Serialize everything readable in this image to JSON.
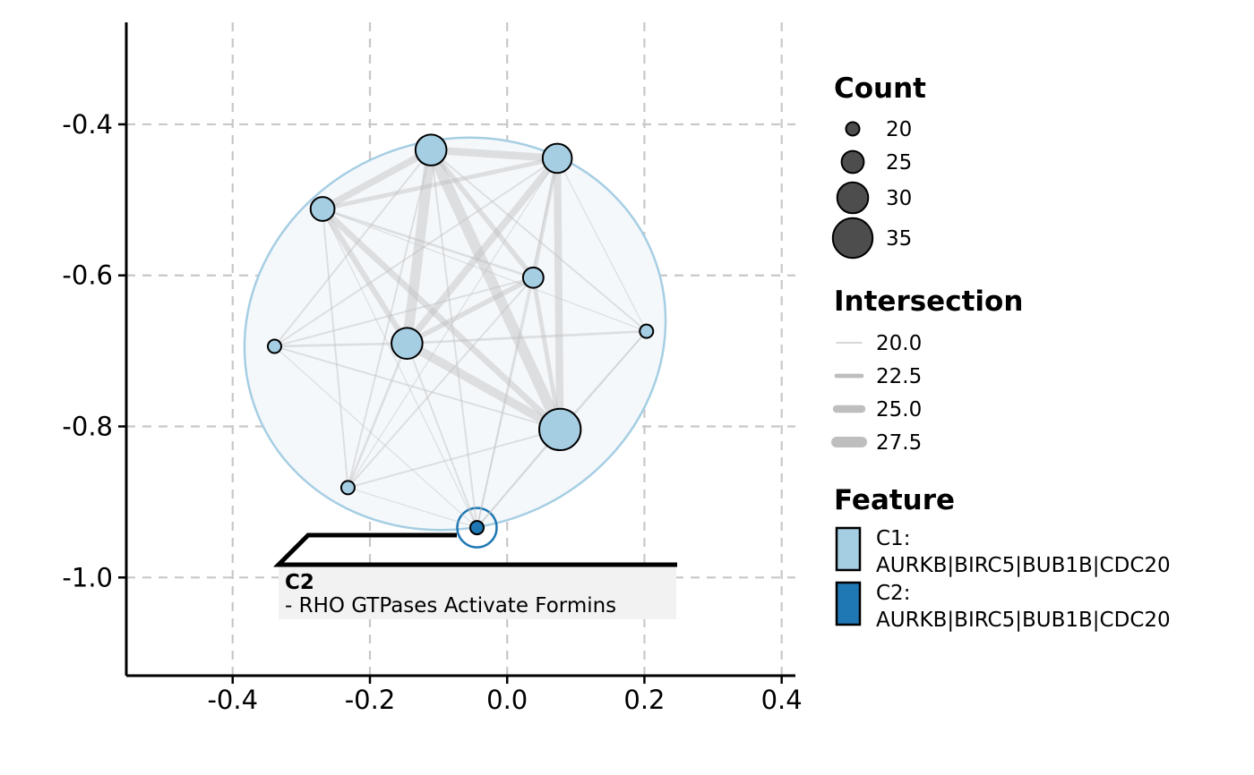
{
  "chart_data": {
    "type": "scatter",
    "xlabel": "",
    "ylabel": "",
    "xlim": [
      -0.555,
      0.42
    ],
    "ylim": [
      -1.13,
      -0.265
    ],
    "x_ticks": [
      -0.4,
      -0.2,
      0.0,
      0.2,
      0.4
    ],
    "x_tick_labels": [
      "-0.4",
      "-0.2",
      "0.0",
      "0.2",
      "0.4"
    ],
    "y_ticks": [
      -0.4,
      -0.6,
      -0.8,
      -1.0
    ],
    "y_tick_labels": [
      "-0.4",
      "-0.6",
      "-0.8",
      "-1.0"
    ],
    "grid": true,
    "legend_position": "right",
    "colors": {
      "C1": "#a6cee3",
      "C2": "#1f78b4",
      "edge": "#bebebe",
      "node_stroke": "#000000",
      "label_bg": "#f2f2f2"
    },
    "nodes": [
      {
        "id": 0,
        "cluster": "C1",
        "x": -0.111,
        "y": -0.434,
        "count": 30
      },
      {
        "id": 1,
        "cluster": "C1",
        "x": 0.073,
        "y": -0.445,
        "count": 29
      },
      {
        "id": 2,
        "cluster": "C1",
        "x": -0.269,
        "y": -0.512,
        "count": 26
      },
      {
        "id": 3,
        "cluster": "C1",
        "x": 0.038,
        "y": -0.603,
        "count": 24
      },
      {
        "id": 4,
        "cluster": "C1",
        "x": -0.146,
        "y": -0.69,
        "count": 30
      },
      {
        "id": 5,
        "cluster": "C1",
        "x": 0.203,
        "y": -0.674,
        "count": 20
      },
      {
        "id": 6,
        "cluster": "C1",
        "x": -0.339,
        "y": -0.694,
        "count": 20
      },
      {
        "id": 7,
        "cluster": "C1",
        "x": 0.077,
        "y": -0.804,
        "count": 36
      },
      {
        "id": 8,
        "cluster": "C1",
        "x": -0.232,
        "y": -0.881,
        "count": 20
      },
      {
        "id": 9,
        "cluster": "C2",
        "x": -0.044,
        "y": -0.934,
        "count": 20
      }
    ],
    "edges": [
      {
        "source": 0,
        "target": 1,
        "intersection": 25.0
      },
      {
        "source": 0,
        "target": 2,
        "intersection": 24.5
      },
      {
        "source": 0,
        "target": 4,
        "intersection": 27.0
      },
      {
        "source": 0,
        "target": 7,
        "intersection": 27.5
      },
      {
        "source": 0,
        "target": 3,
        "intersection": 23.0
      },
      {
        "source": 0,
        "target": 6,
        "intersection": 20.5
      },
      {
        "source": 0,
        "target": 8,
        "intersection": 20.5
      },
      {
        "source": 0,
        "target": 5,
        "intersection": 20.5
      },
      {
        "source": 0,
        "target": 9,
        "intersection": 20.5
      },
      {
        "source": 1,
        "target": 4,
        "intersection": 24.5
      },
      {
        "source": 1,
        "target": 7,
        "intersection": 25.0
      },
      {
        "source": 1,
        "target": 2,
        "intersection": 22.5
      },
      {
        "source": 1,
        "target": 3,
        "intersection": 22.0
      },
      {
        "source": 1,
        "target": 5,
        "intersection": 20.0
      },
      {
        "source": 1,
        "target": 6,
        "intersection": 20.5
      },
      {
        "source": 1,
        "target": 8,
        "intersection": 20.0
      },
      {
        "source": 1,
        "target": 9,
        "intersection": 20.0
      },
      {
        "source": 2,
        "target": 4,
        "intersection": 23.5
      },
      {
        "source": 2,
        "target": 7,
        "intersection": 24.0
      },
      {
        "source": 2,
        "target": 3,
        "intersection": 21.0
      },
      {
        "source": 2,
        "target": 5,
        "intersection": 20.0
      },
      {
        "source": 2,
        "target": 8,
        "intersection": 20.5
      },
      {
        "source": 2,
        "target": 9,
        "intersection": 20.0
      },
      {
        "source": 3,
        "target": 4,
        "intersection": 23.0
      },
      {
        "source": 3,
        "target": 7,
        "intersection": 22.5
      },
      {
        "source": 3,
        "target": 6,
        "intersection": 20.5
      },
      {
        "source": 3,
        "target": 8,
        "intersection": 20.5
      },
      {
        "source": 3,
        "target": 9,
        "intersection": 20.5
      },
      {
        "source": 4,
        "target": 7,
        "intersection": 26.0
      },
      {
        "source": 4,
        "target": 5,
        "intersection": 21.0
      },
      {
        "source": 4,
        "target": 6,
        "intersection": 21.0
      },
      {
        "source": 4,
        "target": 8,
        "intersection": 21.0
      },
      {
        "source": 4,
        "target": 9,
        "intersection": 20.5
      },
      {
        "source": 5,
        "target": 7,
        "intersection": 20.5
      },
      {
        "source": 5,
        "target": 9,
        "intersection": 20.0
      },
      {
        "source": 6,
        "target": 7,
        "intersection": 20.5
      },
      {
        "source": 6,
        "target": 9,
        "intersection": 20.0
      },
      {
        "source": 7,
        "target": 8,
        "intersection": 20.5
      },
      {
        "source": 7,
        "target": 9,
        "intersection": 20.5
      },
      {
        "source": 8,
        "target": 9,
        "intersection": 20.0
      }
    ],
    "cluster_label": {
      "cluster": "C2",
      "title": "C2",
      "text": "- RHO GTPases Activate Formins"
    },
    "legend": {
      "count": {
        "title": "Count",
        "items": [
          {
            "label": "20",
            "value": 20
          },
          {
            "label": "25",
            "value": 25
          },
          {
            "label": "30",
            "value": 30
          },
          {
            "label": "35",
            "value": 35
          }
        ]
      },
      "intersection": {
        "title": "Intersection",
        "items": [
          {
            "label": "20.0",
            "value": 20.0
          },
          {
            "label": "22.5",
            "value": 22.5
          },
          {
            "label": "25.0",
            "value": 25.0
          },
          {
            "label": "27.5",
            "value": 27.5
          }
        ]
      },
      "feature": {
        "title": "Feature",
        "items": [
          {
            "name": "C1",
            "line1": "C1:",
            "line2": "AURKB|BIRC5|BUB1B|CDC20",
            "color": "#a6cee3"
          },
          {
            "name": "C2",
            "line1": "C2:",
            "line2": "AURKB|BIRC5|BUB1B|CDC20",
            "color": "#1f78b4"
          }
        ]
      }
    }
  }
}
